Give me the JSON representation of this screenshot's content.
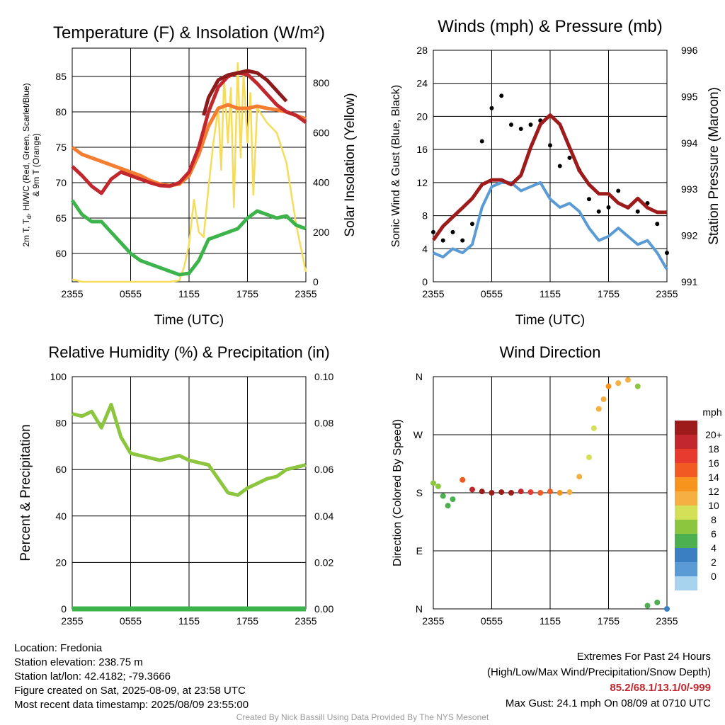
{
  "colors": {
    "t2m": "#c1272d",
    "td": "#3cb44b",
    "hiwc": "#8b1a1a",
    "t9m": "#f47d30",
    "insolation": "#f5dc5a",
    "wind": "#5b9bd5",
    "gust": "#000000",
    "pressure": "#9e1b1b",
    "rh": "#8cc63f",
    "precip": "#3cb44b"
  },
  "chart_data": [
    {
      "type": "line",
      "title": "Temperature (F) & Insolation (W/m²)",
      "xlabel": "Time (UTC)",
      "ylabel_left": "2m T, T",
      "ylabel_left_sub": "d",
      "ylabel_left_rest": ", HI/WC (Red, Green, Scarlet/Blue)",
      "ylabel_left_line2": "& 9m T (Orange)",
      "ylabel_right": "Solar Insolation (Yellow)",
      "x_ticks": [
        "2355",
        "0555",
        "1155",
        "1755",
        "2355"
      ],
      "ylim_left": [
        56,
        89
      ],
      "y_ticks_left": [
        60,
        65,
        70,
        75,
        80,
        85
      ],
      "ylim_right": [
        0,
        940
      ],
      "y_ticks_right": [
        0,
        200,
        400,
        600,
        800
      ],
      "series": [
        {
          "key": "t2m",
          "axis": "left",
          "x": [
            0,
            1,
            2,
            3,
            4,
            5,
            6,
            7,
            8,
            9,
            10,
            11,
            12,
            13,
            14,
            15,
            16,
            17,
            18,
            19,
            20,
            21,
            22,
            23,
            24
          ],
          "values": [
            72.3,
            71.0,
            69.5,
            68.5,
            70.5,
            71.5,
            71.0,
            70.5,
            70.0,
            69.6,
            69.5,
            70.0,
            71.5,
            75.0,
            80.0,
            83.5,
            85.0,
            85.5,
            85.3,
            84.0,
            82.5,
            81.0,
            80.0,
            79.5,
            78.5
          ]
        },
        {
          "key": "hiwc",
          "axis": "left",
          "x": [
            13.5,
            14,
            15,
            16,
            17,
            18,
            19,
            20,
            21,
            22
          ],
          "values": [
            79.5,
            82.0,
            84.5,
            85.2,
            85.5,
            85.8,
            85.5,
            84.5,
            83.0,
            81.5
          ]
        },
        {
          "key": "t9m",
          "axis": "left",
          "x": [
            0,
            1,
            2,
            3,
            4,
            5,
            6,
            7,
            8,
            9,
            10,
            11,
            12,
            13,
            14,
            15,
            16,
            17,
            18,
            19,
            20,
            21,
            22,
            23,
            24
          ],
          "values": [
            75.0,
            74.0,
            73.5,
            73.0,
            72.5,
            72.0,
            71.5,
            71.0,
            70.3,
            69.8,
            69.6,
            69.8,
            71.0,
            74.0,
            78.0,
            80.5,
            81.0,
            80.5,
            80.5,
            80.8,
            80.5,
            80.3,
            80.0,
            79.5,
            79.0
          ]
        },
        {
          "key": "td",
          "axis": "left",
          "x": [
            0,
            1,
            2,
            3,
            4,
            5,
            6,
            7,
            8,
            9,
            10,
            11,
            12,
            13,
            14,
            15,
            16,
            17,
            18,
            19,
            20,
            21,
            22,
            23,
            24
          ],
          "values": [
            67.5,
            65.5,
            64.5,
            64.5,
            63.0,
            61.5,
            60.0,
            59.0,
            58.5,
            58.0,
            57.5,
            57.0,
            57.2,
            59.0,
            62.0,
            62.5,
            63.0,
            63.5,
            65.0,
            66.0,
            65.5,
            65.0,
            65.3,
            64.0,
            63.5
          ]
        },
        {
          "key": "insolation",
          "axis": "right",
          "x": [
            0,
            1,
            2,
            3,
            4,
            5,
            6,
            7,
            8,
            9,
            10,
            11,
            11.5,
            12,
            12.5,
            13,
            13.5,
            14,
            14.5,
            15,
            15.3,
            15.6,
            16,
            16.3,
            16.6,
            17,
            17.3,
            17.6,
            18,
            18.3,
            18.6,
            19,
            20,
            21,
            22,
            23,
            24
          ],
          "values": [
            10,
            0,
            0,
            0,
            0,
            0,
            0,
            0,
            0,
            0,
            0,
            5,
            60,
            150,
            330,
            200,
            180,
            380,
            560,
            700,
            450,
            820,
            560,
            780,
            300,
            880,
            500,
            840,
            560,
            760,
            350,
            700,
            640,
            600,
            480,
            230,
            40
          ]
        }
      ]
    },
    {
      "type": "line",
      "title": "Winds (mph) & Pressure (mb)",
      "xlabel": "Time (UTC)",
      "ylabel_left": "Sonic Wind & Gust (Blue, Black)",
      "ylabel_right": "Station Pressure (Maroon)",
      "x_ticks": [
        "2355",
        "0555",
        "1155",
        "1755",
        "2355"
      ],
      "ylim_left": [
        0,
        28
      ],
      "y_ticks_left": [
        0,
        4,
        8,
        12,
        16,
        20,
        24,
        28
      ],
      "ylim_right": [
        991,
        996
      ],
      "y_ticks_right": [
        991,
        992,
        993,
        994,
        995,
        996
      ],
      "series": [
        {
          "key": "wind",
          "axis": "left",
          "x": [
            0,
            1,
            2,
            3,
            4,
            5,
            6,
            7,
            8,
            9,
            10,
            11,
            12,
            13,
            14,
            15,
            16,
            17,
            18,
            19,
            20,
            21,
            22,
            23,
            24
          ],
          "values": [
            3.5,
            3.0,
            4.0,
            3.5,
            4.5,
            9.0,
            11.5,
            12.0,
            12.0,
            11.0,
            11.5,
            12.0,
            10.0,
            9.0,
            9.5,
            8.5,
            6.5,
            5.0,
            5.5,
            6.5,
            5.5,
            4.5,
            5.0,
            3.5,
            1.5
          ]
        },
        {
          "key": "gust",
          "axis": "left",
          "x": [
            0,
            1,
            2,
            3,
            4,
            5,
            6,
            7,
            8,
            9,
            10,
            11,
            12,
            13,
            14,
            15,
            16,
            17,
            18,
            19,
            20,
            21,
            22,
            23,
            24
          ],
          "values": [
            6.0,
            5.0,
            6.0,
            5.0,
            7.0,
            17.0,
            21.0,
            22.5,
            19.0,
            18.5,
            19.0,
            19.5,
            16.5,
            14.0,
            15.0,
            13.5,
            10.0,
            8.5,
            9.0,
            11.0,
            9.0,
            8.5,
            9.5,
            7.0,
            3.5
          ]
        },
        {
          "key": "pressure",
          "axis": "right",
          "x": [
            0,
            1,
            2,
            3,
            4,
            5,
            6,
            7,
            8,
            9,
            10,
            11,
            12,
            13,
            14,
            15,
            16,
            17,
            18,
            19,
            20,
            21,
            22,
            23,
            24
          ],
          "values": [
            991.9,
            992.2,
            992.4,
            992.6,
            992.8,
            993.1,
            993.2,
            993.2,
            993.1,
            993.3,
            993.9,
            994.4,
            994.6,
            994.4,
            993.9,
            993.4,
            993.1,
            992.9,
            992.9,
            992.7,
            992.6,
            992.8,
            992.6,
            992.5,
            992.5
          ]
        }
      ]
    },
    {
      "type": "line",
      "title": "Relative Humidity (%) & Precipitation (in)",
      "ylabel_left": "Percent & Precipitation",
      "x_ticks": [
        "2355",
        "0555",
        "1155",
        "1755",
        "2355"
      ],
      "ylim_left": [
        0,
        100
      ],
      "y_ticks_left": [
        0,
        20,
        40,
        60,
        80,
        100
      ],
      "ylim_right": [
        0,
        0.1
      ],
      "y_ticks_right": [
        "0.00",
        "0.02",
        "0.04",
        "0.06",
        "0.08",
        "0.10"
      ],
      "series": [
        {
          "key": "rh",
          "axis": "left",
          "x": [
            0,
            1,
            2,
            3,
            4,
            5,
            6,
            7,
            8,
            9,
            10,
            11,
            12,
            13,
            14,
            15,
            16,
            17,
            18,
            19,
            20,
            21,
            22,
            23,
            24
          ],
          "values": [
            84,
            83,
            85,
            78,
            88,
            74,
            67,
            66,
            65,
            64,
            65,
            66,
            64,
            63,
            62,
            56,
            50,
            49,
            52,
            54,
            56,
            57,
            60,
            61,
            62
          ]
        },
        {
          "key": "precip",
          "axis": "right",
          "x": [
            0,
            24
          ],
          "values": [
            0,
            0
          ]
        }
      ]
    },
    {
      "type": "scatter",
      "title": "Wind Direction",
      "ylabel_left": "Direction (Colored By Speed)",
      "x_ticks": [
        "2355",
        "0555",
        "1155",
        "1755",
        "2355"
      ],
      "y_ticks": [
        "N",
        "E",
        "S",
        "W",
        "N"
      ],
      "ylim": [
        0,
        360
      ],
      "colorbar_title": "mph",
      "colorbar_labels": [
        "20+",
        "18",
        "16",
        "14",
        "12",
        "10",
        "8",
        "6",
        "4",
        "2",
        "0"
      ],
      "colorbar_colors": [
        "#9e1b1b",
        "#c1272d",
        "#e63b2e",
        "#f15a22",
        "#f7941d",
        "#f5b041",
        "#d4e157",
        "#8cc63f",
        "#4caf50",
        "#3a7fc1",
        "#5b9bd5",
        "#a7d3f0"
      ],
      "points_dir": [
        195,
        190,
        175,
        160,
        170,
        200,
        185,
        182,
        180,
        181,
        180,
        182,
        181,
        180,
        182,
        180,
        181,
        205,
        235,
        280,
        310,
        325,
        345,
        350,
        355,
        345,
        5,
        10,
        0
      ],
      "points_t": [
        0,
        0.5,
        1,
        1.5,
        2,
        3,
        4,
        5,
        6,
        7,
        8,
        9,
        10,
        11,
        12,
        13,
        14,
        15,
        16,
        16.5,
        17,
        17.5,
        18,
        19,
        20,
        21,
        22,
        23,
        24
      ],
      "points_spd": [
        4,
        4,
        3,
        3,
        3,
        8,
        10,
        11,
        12,
        11,
        11,
        10,
        9,
        8,
        8,
        7,
        6,
        6,
        5,
        5,
        6,
        6,
        7,
        6,
        6,
        4,
        3,
        3,
        2
      ]
    }
  ],
  "footer": {
    "location": "Location: Fredonia",
    "elevation": "Station elevation: 238.75 m",
    "latlon": "Station lat/lon: 42.4182; -79.3666",
    "created": "Figure created on Sat, 2025-08-09, at 23:58 UTC",
    "recent": "Most recent data timestamp: 2025/08/09 23:55:00",
    "extremes_title": "Extremes For Past 24 Hours",
    "extremes_legend": "(High/Low/Max Wind/Precipitation/Snow Depth)",
    "extremes_values": "85.2/68.1/13.1/0/-999",
    "max_gust": "Max Gust: 24.1 mph On 08/09 at 0710 UTC"
  },
  "credit": "Created By Nick Bassill Using Data Provided By The NYS Mesonet"
}
